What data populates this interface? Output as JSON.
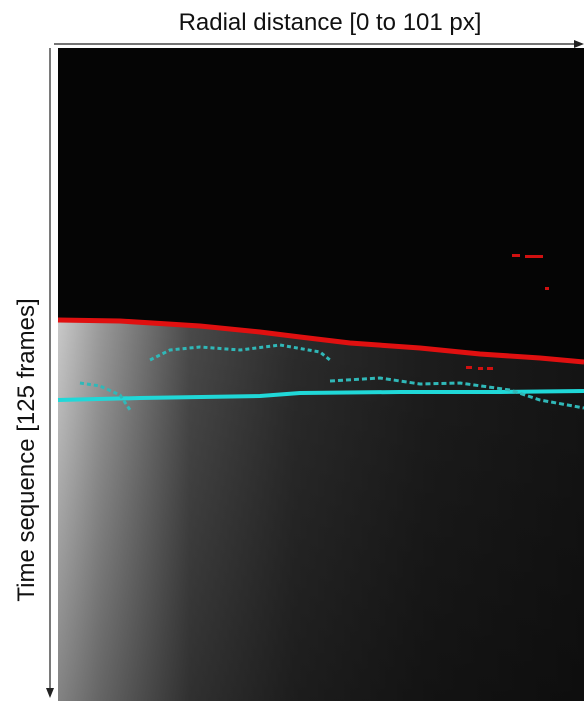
{
  "figure": {
    "x_axis_label": "Radial distance [0 to 101 px]",
    "y_axis_label": "Time sequence [125 frames]"
  }
}
